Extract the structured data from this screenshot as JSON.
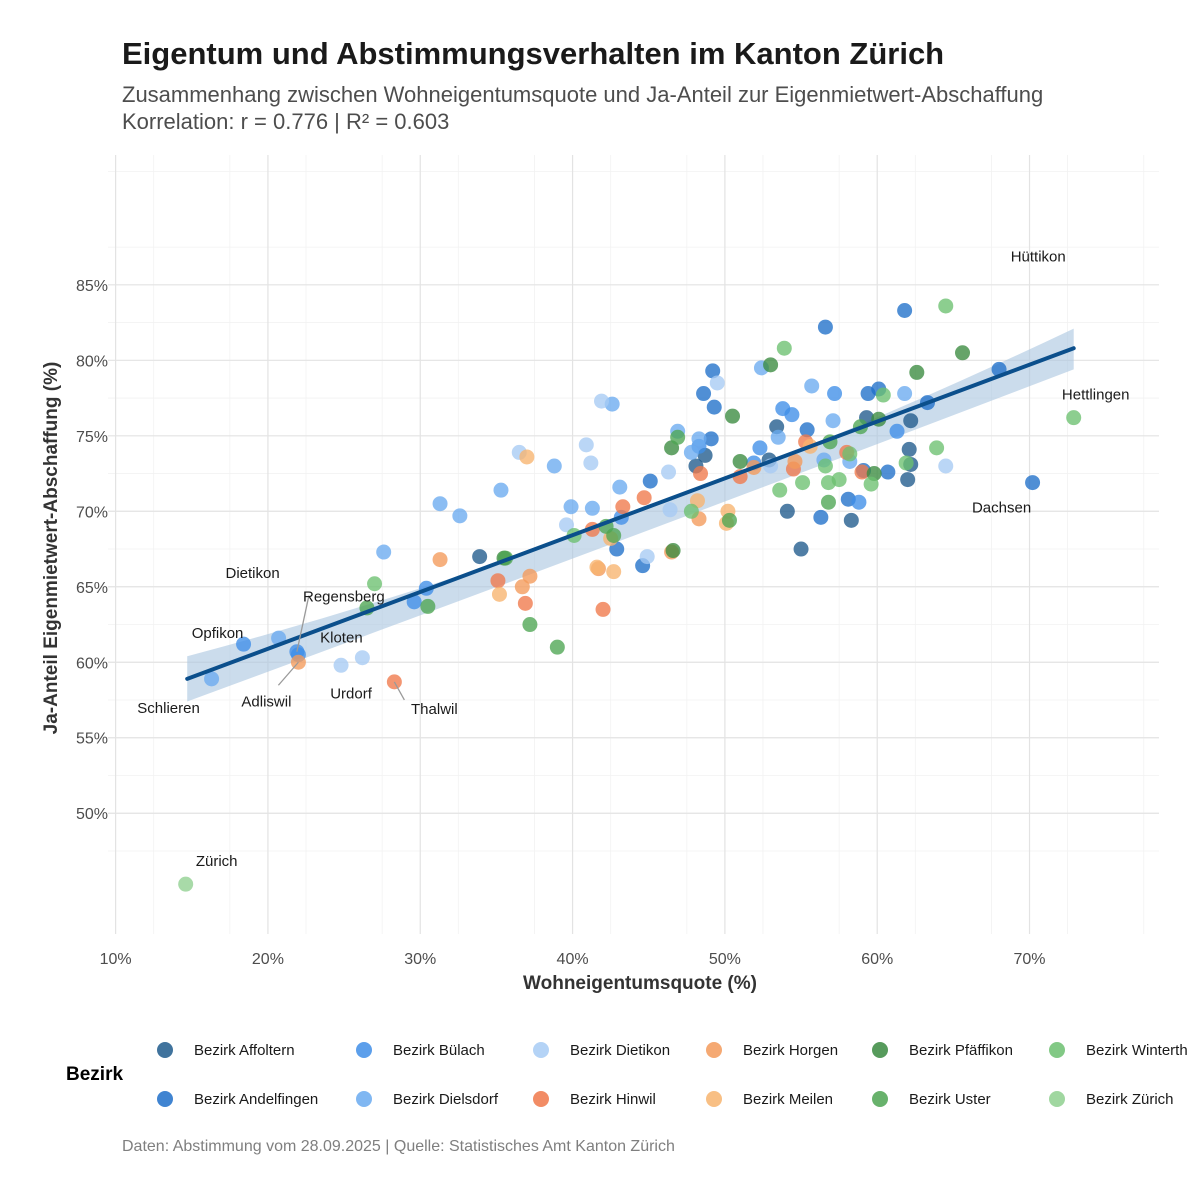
{
  "title": "Eigentum und Abstimmungsverhalten im Kanton Zürich",
  "subtitle": "Zusammenhang zwischen Wohneigentumsquote und Ja-Anteil zur Eigenmietwert-Abschaffung",
  "subtitle2": "Korrelation: r = 0.776 | R² = 0.603",
  "caption": "Daten: Abstimmung vom 28.09.2025 | Quelle: Statistisches Amt Kanton Zürich",
  "legend": {
    "title": "Bezirk",
    "items": [
      {
        "label": "Bezirk Affoltern",
        "color": "#1f5a8c"
      },
      {
        "label": "Bezirk Andelfingen",
        "color": "#1f6fc9"
      },
      {
        "label": "Bezirk Bülach",
        "color": "#3f8ee8"
      },
      {
        "label": "Bezirk Dielsdorf",
        "color": "#6aaaf0"
      },
      {
        "label": "Bezirk Dietikon",
        "color": "#a7cbf4"
      },
      {
        "label": "Bezirk Hinwil",
        "color": "#f0784a"
      },
      {
        "label": "Bezirk Horgen",
        "color": "#f39a5a"
      },
      {
        "label": "Bezirk Meilen",
        "color": "#f7b46e"
      },
      {
        "label": "Bezirk Pfäffikon",
        "color": "#3a8a3f"
      },
      {
        "label": "Bezirk Uster",
        "color": "#4da552"
      },
      {
        "label": "Bezirk Winterth",
        "color": "#6cc070"
      },
      {
        "label": "Bezirk Zürich",
        "color": "#8fd08f"
      }
    ]
  },
  "chart_data": {
    "type": "scatter",
    "xlabel": "Wohneigentumsquote (%)",
    "ylabel": "Ja-Anteil Eigenmietwert-Abschaffung (%)",
    "xlim": [
      9.5,
      78.5
    ],
    "ylim": [
      42,
      93.6
    ],
    "x_ticks": [
      10,
      20,
      30,
      40,
      50,
      60,
      70
    ],
    "x_tick_labels": [
      "10%",
      "20%",
      "30%",
      "40%",
      "50%",
      "60%",
      "70%"
    ],
    "y_ticks": [
      50,
      55,
      60,
      65,
      70,
      75,
      80,
      85
    ],
    "y_tick_labels": [
      "50%",
      "55%",
      "60%",
      "65%",
      "70%",
      "75%",
      "80%",
      "85%"
    ],
    "grid": true,
    "legend_position": "bottom",
    "regression": {
      "x_start": 14.7,
      "x_end": 72.9,
      "y_start": 58.9,
      "y_end": 80.8,
      "band_start": [
        57.4,
        60.4
      ],
      "band_mid": [
        68.3,
        69.7
      ],
      "band_end": [
        79.4,
        82.1
      ],
      "x_mid": 43.8
    },
    "series": [
      {
        "name": "Bezirk Affoltern",
        "color": "#1f5a8c",
        "x": [
          33.9,
          48.1,
          48.7,
          52.9,
          53.4,
          54.1,
          55.0,
          58.3,
          59.3,
          62.1,
          62.2,
          62.0,
          62.2
        ],
        "y": [
          67.0,
          73.0,
          73.7,
          73.4,
          75.6,
          70.0,
          67.5,
          69.4,
          76.2,
          74.1,
          76.0,
          72.1,
          73.1
        ]
      },
      {
        "name": "Bezirk Andelfingen",
        "color": "#1f6fc9",
        "x": [
          42.9,
          44.6,
          45.1,
          48.6,
          49.1,
          49.2,
          49.3,
          55.4,
          56.3,
          56.6,
          58.1,
          59.1,
          59.4,
          60.1,
          60.7,
          61.8,
          63.3,
          68.0,
          70.2
        ],
        "y": [
          67.5,
          66.4,
          72.0,
          77.8,
          74.8,
          79.3,
          76.9,
          75.4,
          69.6,
          82.2,
          70.8,
          72.7,
          77.8,
          78.1,
          72.6,
          83.3,
          77.2,
          79.4,
          71.9
        ]
      },
      {
        "name": "Bezirk Bülach",
        "color": "#3f8ee8",
        "x": [
          18.4,
          21.9,
          22.0,
          29.6,
          30.4,
          43.2,
          48.3,
          52.3,
          51.9,
          53.8,
          54.4,
          57.2,
          58.8,
          61.3
        ],
        "y": [
          61.2,
          60.7,
          60.5,
          64.0,
          64.9,
          69.6,
          74.3,
          74.2,
          73.2,
          76.8,
          76.4,
          77.8,
          70.6,
          75.3
        ]
      },
      {
        "name": "Bezirk Dielsdorf",
        "color": "#6aaaf0",
        "x": [
          16.3,
          20.7,
          27.6,
          31.3,
          32.6,
          35.3,
          38.8,
          39.9,
          41.3,
          42.6,
          43.1,
          46.9,
          47.8,
          48.3,
          52.4,
          53.5,
          55.7,
          56.5,
          57.1,
          58.2,
          61.8
        ],
        "y": [
          58.9,
          61.6,
          67.3,
          70.5,
          69.7,
          71.4,
          73.0,
          70.3,
          70.2,
          77.1,
          71.6,
          75.3,
          73.9,
          74.8,
          79.5,
          74.9,
          78.3,
          73.4,
          76.0,
          73.3,
          77.8
        ]
      },
      {
        "name": "Bezirk Dietikon",
        "color": "#a7cbf4",
        "x": [
          24.8,
          26.2,
          36.5,
          39.6,
          40.9,
          41.2,
          41.9,
          44.9,
          46.3,
          46.4,
          49.5,
          53.0,
          64.5
        ],
        "y": [
          59.8,
          60.3,
          73.9,
          69.1,
          74.4,
          73.2,
          77.3,
          67.0,
          72.6,
          70.1,
          78.5,
          73.0,
          73.0
        ]
      },
      {
        "name": "Bezirk Hinwil",
        "color": "#f0784a",
        "x": [
          28.3,
          35.1,
          36.9,
          41.3,
          42.0,
          43.3,
          44.7,
          48.4,
          51.0,
          54.5,
          55.3,
          58.0,
          59.0
        ],
        "y": [
          58.7,
          65.4,
          63.9,
          68.8,
          63.5,
          70.3,
          70.9,
          72.5,
          72.3,
          72.8,
          74.6,
          73.9,
          72.6
        ]
      },
      {
        "name": "Bezirk Horgen",
        "color": "#f39a5a",
        "x": [
          22.0,
          31.3,
          36.7,
          37.2,
          41.7,
          46.5,
          48.3,
          51.9,
          54.6
        ],
        "y": [
          60.0,
          66.8,
          65.0,
          65.7,
          66.2,
          67.3,
          69.5,
          72.9,
          73.3
        ]
      },
      {
        "name": "Bezirk Meilen",
        "color": "#f7b46e",
        "x": [
          35.2,
          37.0,
          41.6,
          42.5,
          42.7,
          48.2,
          50.2,
          50.1,
          55.6
        ],
        "y": [
          64.5,
          73.6,
          66.3,
          68.2,
          66.0,
          70.7,
          70.0,
          69.2,
          74.3
        ]
      },
      {
        "name": "Bezirk Pfäffikon",
        "color": "#3a8a3f",
        "x": [
          35.5,
          46.5,
          46.6,
          50.5,
          51.0,
          53.0,
          59.8,
          60.1,
          62.6,
          65.6
        ],
        "y": [
          66.9,
          74.2,
          67.4,
          76.3,
          73.3,
          79.7,
          72.5,
          76.1,
          79.2,
          80.5
        ]
      },
      {
        "name": "Bezirk Uster",
        "color": "#4da552",
        "x": [
          26.5,
          30.5,
          35.6,
          37.2,
          39.0,
          42.2,
          42.7,
          46.9,
          50.3,
          56.8,
          56.9,
          58.9
        ],
        "y": [
          63.6,
          63.7,
          66.9,
          62.5,
          61.0,
          69.0,
          68.4,
          74.9,
          69.4,
          70.6,
          74.6,
          75.6
        ]
      },
      {
        "name": "Bezirk Winterth",
        "color": "#6cc070",
        "x": [
          27.0,
          40.1,
          47.8,
          53.6,
          53.9,
          55.1,
          56.6,
          56.8,
          57.5,
          58.2,
          59.6,
          60.4,
          61.9,
          63.9,
          64.5,
          72.9
        ],
        "y": [
          65.2,
          68.4,
          70.0,
          71.4,
          80.8,
          71.9,
          73.0,
          71.9,
          72.1,
          73.8,
          71.8,
          77.7,
          73.2,
          74.2,
          83.6,
          76.2
        ]
      },
      {
        "name": "Bezirk Zürich",
        "color": "#8fd08f",
        "x": [
          14.6
        ],
        "y": [
          45.3
        ]
      }
    ],
    "point_labels": [
      {
        "text": "Hüttikon",
        "x": 68.6,
        "y": 85.1
      },
      {
        "text": "Hettlingen",
        "x": 72.9,
        "y": 76.2
      },
      {
        "text": "Dachsen",
        "x": 70.2,
        "y": 71.9
      },
      {
        "text": "Regensberg",
        "x": 21.9,
        "y": 60.7
      },
      {
        "text": "Dietikon",
        "x": 20.7,
        "y": 61.6
      },
      {
        "text": "Kloten",
        "x": 22.0,
        "y": 60.5
      },
      {
        "text": "Opfikon",
        "x": 18.4,
        "y": 61.2
      },
      {
        "text": "Adliswil",
        "x": 22.0,
        "y": 60.0
      },
      {
        "text": "Urdorf",
        "x": 24.8,
        "y": 59.8
      },
      {
        "text": "Thalwil",
        "x": 28.3,
        "y": 58.7
      },
      {
        "text": "Schlieren",
        "x": 16.3,
        "y": 58.9
      },
      {
        "text": "Zürich",
        "x": 14.6,
        "y": 45.3
      }
    ]
  }
}
